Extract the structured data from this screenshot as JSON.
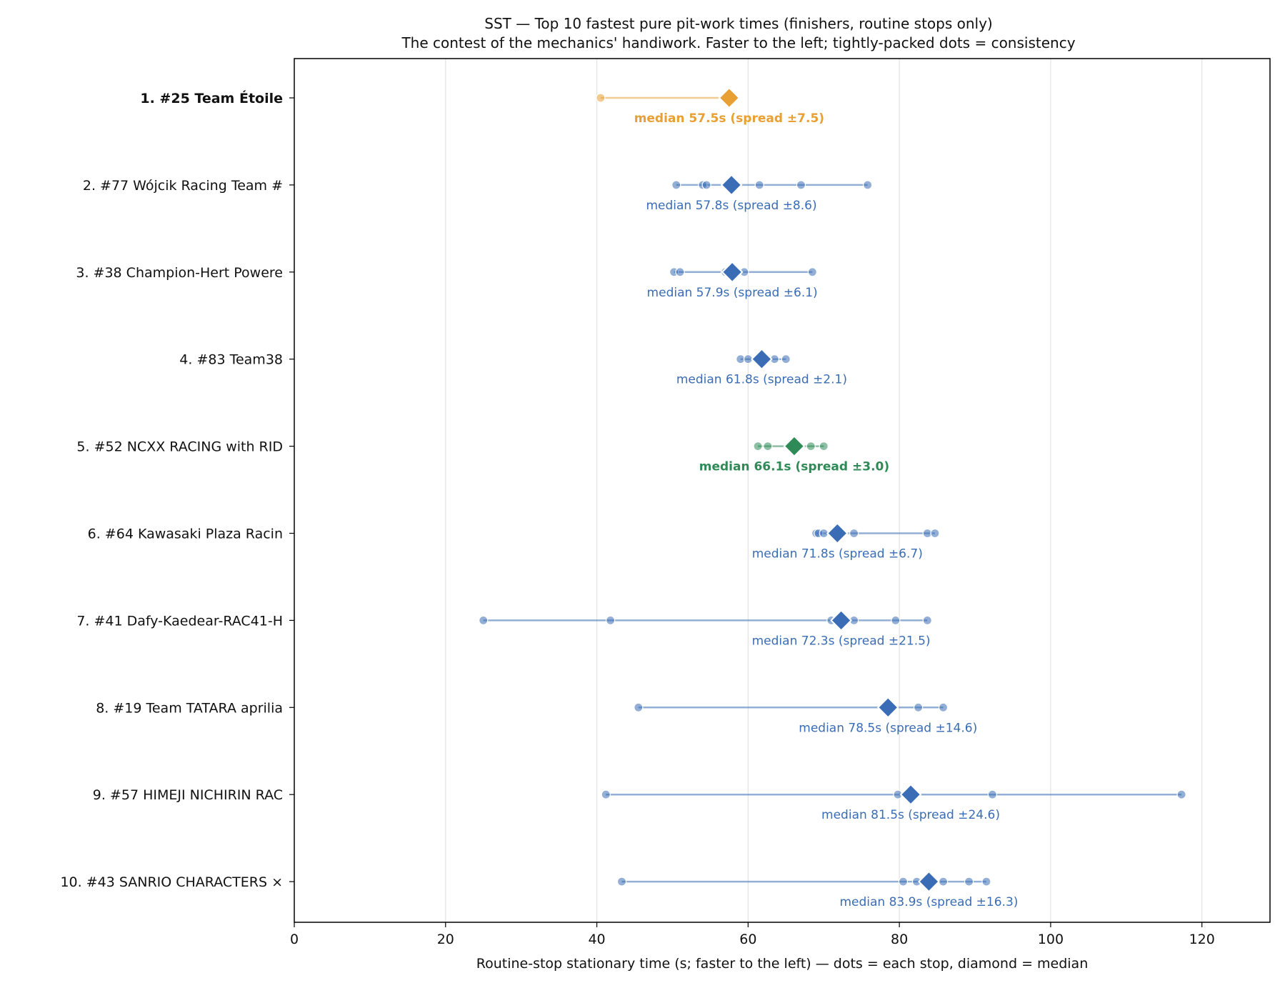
{
  "chart_data": {
    "type": "scatter",
    "title": "SST — Top 10 fastest pure pit-work times (finishers, routine stops only)",
    "subtitle": "The contest of the mechanics' handiwork. Faster to the left; tightly-packed dots = consistency",
    "xlabel": "Routine-stop stationary time (s; faster to the left) — dots = each stop, diamond = median",
    "xlim": [
      0,
      129
    ],
    "xticks": [
      "0",
      "20",
      "40",
      "60",
      "80",
      "100",
      "120"
    ],
    "grid": "vertical",
    "colors": {
      "highlight_first": "#e8a035",
      "highlight_first_label": "#7a5a00",
      "default": "#3a6db5",
      "highlight_fifth": "#2e8b57"
    },
    "series": [
      {
        "label": "1.  #25 Team Étoile",
        "style": "first",
        "points": [
          40.5,
          57.5
        ],
        "median": 57.5,
        "median_text": "median 57.5s (spread ±7.5)"
      },
      {
        "label": "2.  #77 Wójcik Racing Team #",
        "style": "default",
        "points": [
          50.5,
          54.0,
          54.5,
          61.5,
          67.0,
          75.8
        ],
        "median": 57.8,
        "median_text": "median 57.8s (spread ±8.6)"
      },
      {
        "label": "3.  #38 Champion-Hert Powere",
        "style": "default",
        "points": [
          50.2,
          51.0,
          57.0,
          59.5,
          68.5
        ],
        "median": 57.9,
        "median_text": "median 57.9s (spread ±6.1)"
      },
      {
        "label": "4.  #83 Team38",
        "style": "default",
        "points": [
          59.0,
          60.0,
          63.5,
          65.0
        ],
        "median": 61.8,
        "median_text": "median 61.8s (spread ±2.1)"
      },
      {
        "label": "5.  #52 NCXX RACING with RID",
        "style": "fifth",
        "points": [
          61.3,
          62.6,
          65.5,
          68.3,
          70.0
        ],
        "median": 66.1,
        "median_text": "median 66.1s (spread ±3.0)"
      },
      {
        "label": "6.  #64 Kawasaki Plaza Racin",
        "style": "default",
        "points": [
          69.0,
          69.3,
          70.0,
          74.0,
          83.7,
          84.7
        ],
        "median": 71.8,
        "median_text": "median 71.8s (spread ±6.7)"
      },
      {
        "label": "7.  #41 Dafy-Kaedear-RAC41-H",
        "style": "default",
        "points": [
          25.0,
          41.8,
          71.0,
          74.0,
          79.5,
          83.7
        ],
        "median": 72.3,
        "median_text": "median 72.3s (spread ±21.5)"
      },
      {
        "label": "8.  #19 Team TATARA aprilia",
        "style": "default",
        "points": [
          45.5,
          82.5,
          85.8
        ],
        "median": 78.5,
        "median_text": "median 78.5s (spread ±14.6)"
      },
      {
        "label": "9.  #57 HIMEJI NICHIRIN  RAC",
        "style": "default",
        "points": [
          41.2,
          79.8,
          92.3,
          117.3
        ],
        "median": 81.5,
        "median_text": "median 81.5s (spread ±24.6)"
      },
      {
        "label": "10.  #43 SANRIO CHARACTERS ×",
        "style": "default",
        "points": [
          43.3,
          80.5,
          82.3,
          85.8,
          89.2,
          91.5
        ],
        "median": 83.9,
        "median_text": "median 83.9s (spread ±16.3)"
      }
    ]
  }
}
